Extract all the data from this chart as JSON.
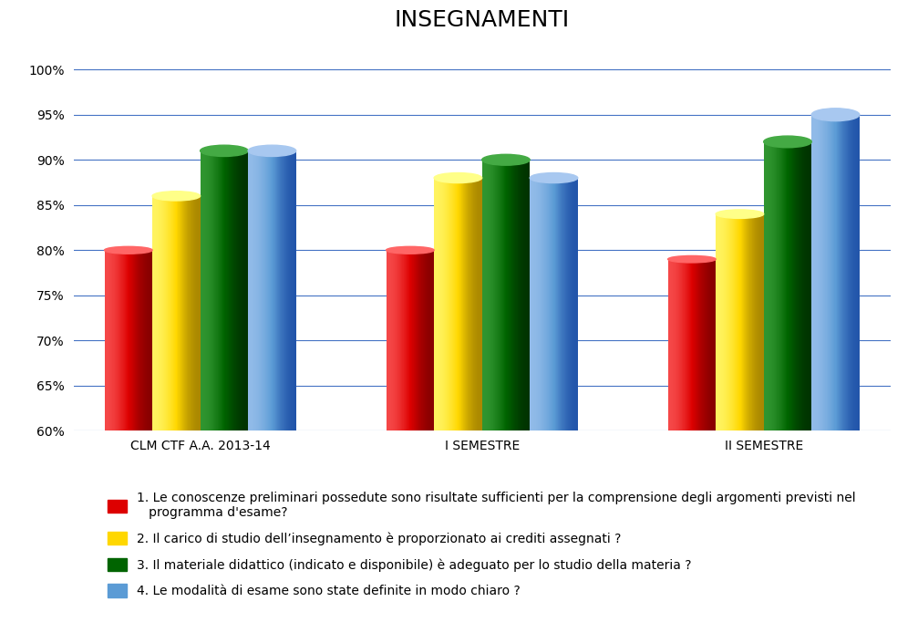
{
  "title": "INSEGNAMENTI",
  "categories": [
    "CLM CTF A.A. 2013-14",
    "I SEMESTRE",
    "II SEMESTRE"
  ],
  "series": {
    "1": [
      80,
      80,
      79
    ],
    "2": [
      86,
      88,
      84
    ],
    "3": [
      91,
      90,
      92
    ],
    "4": [
      91,
      88,
      95
    ]
  },
  "colors_base": [
    "#DD0000",
    "#FFD700",
    "#006400",
    "#5B9BD5"
  ],
  "colors_light": [
    "#FF6666",
    "#FFFF88",
    "#44AA44",
    "#A8C8F0"
  ],
  "colors_dark": [
    "#880000",
    "#AA8800",
    "#003300",
    "#2255AA"
  ],
  "ylim": [
    60,
    102
  ],
  "yticks": [
    60,
    65,
    70,
    75,
    80,
    85,
    90,
    95,
    100
  ],
  "legend_labels": [
    "1. Le conoscenze preliminari possedute sono risultate sufficienti per la comprensione degli argomenti previsti nel\n   programma d'esame?",
    "2. Il carico di studio dell’insegnamento è proporzionato ai crediti assegnati ?",
    "3. Il materiale didattico (indicato e disponibile) è adeguato per lo studio della materia ?",
    "4. Le modalità di esame sono state definite in modo chiaro ?"
  ],
  "background_color": "#FFFFFF",
  "grid_color": "#4472C4",
  "bar_width": 0.17,
  "title_fontsize": 18,
  "axis_fontsize": 10,
  "legend_fontsize": 10
}
